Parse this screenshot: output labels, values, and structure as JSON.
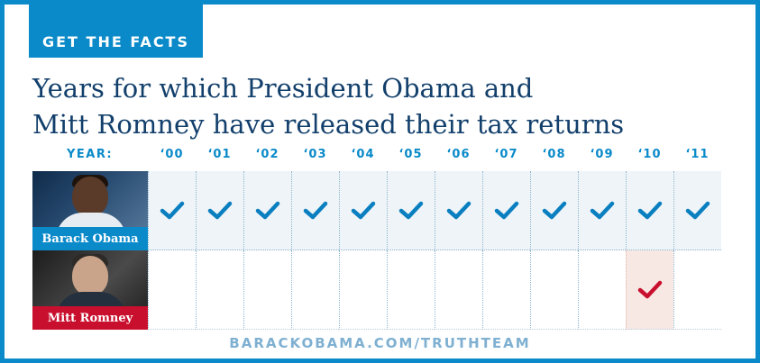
{
  "banner": {
    "label": "GET THE FACTS"
  },
  "headline": {
    "line1": "Years for which President Obama and",
    "line2": "Mitt Romney have released their tax returns"
  },
  "table": {
    "year_label": "YEAR:",
    "years": [
      "‘00",
      "‘01",
      "‘02",
      "‘03",
      "‘04",
      "‘05",
      "‘06",
      "‘07",
      "‘08",
      "‘09",
      "‘10",
      "‘11"
    ],
    "rows": [
      {
        "name": "Barack Obama",
        "released": [
          true,
          true,
          true,
          true,
          true,
          true,
          true,
          true,
          true,
          true,
          true,
          true
        ],
        "bar_color": "#0a8ac9",
        "check_color": "#0a7fc0"
      },
      {
        "name": "Mitt Romney",
        "released": [
          false,
          false,
          false,
          false,
          false,
          false,
          false,
          false,
          false,
          false,
          true,
          false
        ],
        "bar_color": "#c8102e",
        "check_color": "#c8102e"
      }
    ]
  },
  "footer": {
    "url": "BARACKOBAMA.COM/TRUTHTEAM"
  },
  "colors": {
    "brand_blue": "#0a8ac9",
    "headline_navy": "#123f6b",
    "romney_red": "#c8102e",
    "highlight_pink": "#f7e8e4"
  }
}
